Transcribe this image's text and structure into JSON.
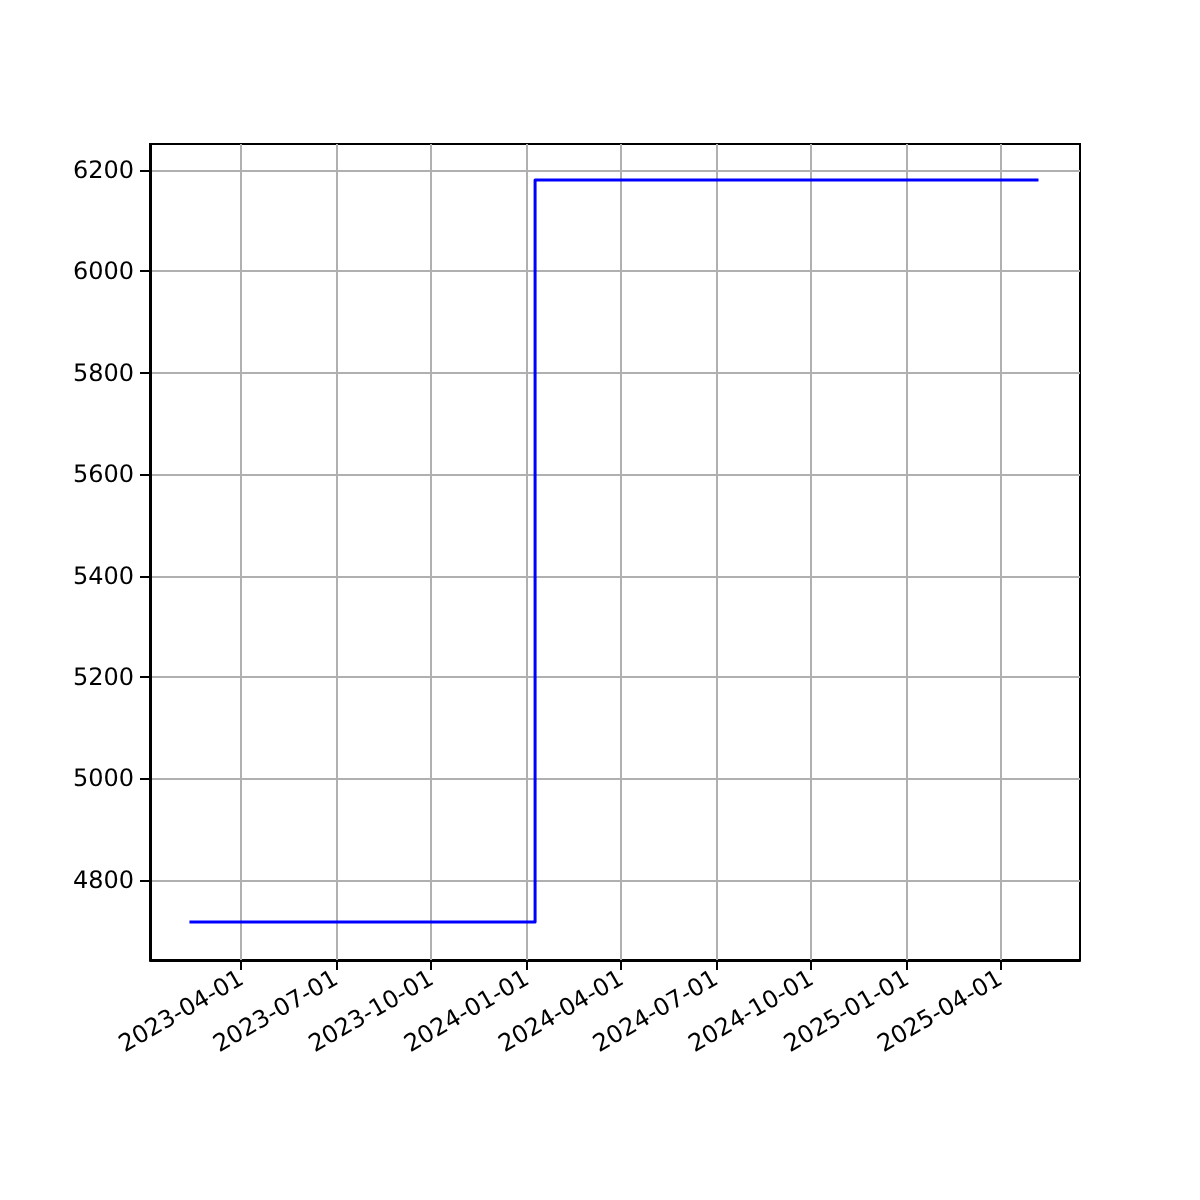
{
  "chart_data": {
    "type": "step",
    "x": [
      "2023-02-10",
      "2024-01-09",
      "2025-05-08"
    ],
    "values": [
      4717,
      6180,
      6180
    ],
    "color": "#0000ff",
    "marker": "none",
    "grid": true,
    "xlim": [
      "2023-01-03",
      "2025-06-17"
    ],
    "xticks": [
      "2023-04-01",
      "2023-07-01",
      "2023-10-01",
      "2024-01-01",
      "2024-04-01",
      "2024-07-01",
      "2024-10-01",
      "2025-01-01",
      "2025-04-01"
    ],
    "ylim": [
      4642,
      6251
    ],
    "yticks": [
      4800,
      5000,
      5200,
      5400,
      5600,
      5800,
      6000,
      6200
    ]
  }
}
